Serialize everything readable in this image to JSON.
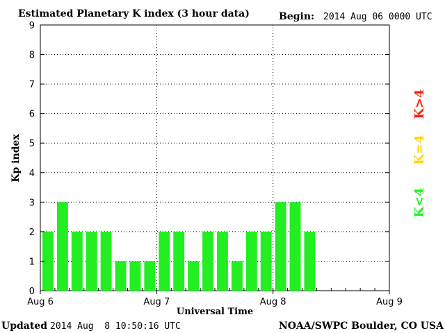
{
  "header": {
    "title": "Estimated Planetary K index (3 hour data)",
    "begin_label": "Begin:",
    "begin_value": "2014 Aug 06 0000 UTC"
  },
  "footer": {
    "updated_label": "Updated",
    "updated_value": "2014 Aug  8 10:50:16 UTC",
    "source": "NOAA/SWPC Boulder, CO USA"
  },
  "legend": [
    {
      "label": "K>4",
      "color": "#ff2200"
    },
    {
      "label": "K=4",
      "color": "#ffd700"
    },
    {
      "label": "K<4",
      "color": "#22ee22"
    }
  ],
  "chart_data": {
    "type": "bar",
    "title": "Estimated Planetary K index (3 hour data)",
    "xlabel": "Universal Time",
    "ylabel": "Kp index",
    "ylim": [
      0,
      9
    ],
    "yticks": [
      0,
      1,
      2,
      3,
      4,
      5,
      6,
      7,
      8,
      9
    ],
    "x_tick_labels": [
      "Aug 6",
      "Aug 7",
      "Aug 8",
      "Aug 9"
    ],
    "bar_interval_hours": 3,
    "slots_total": 24,
    "grid": true,
    "values": [
      2,
      3,
      2,
      2,
      2,
      1,
      1,
      1,
      2,
      2,
      1,
      2,
      2,
      1,
      2,
      2,
      3,
      3,
      2
    ],
    "bar_color": "#22ee22"
  }
}
